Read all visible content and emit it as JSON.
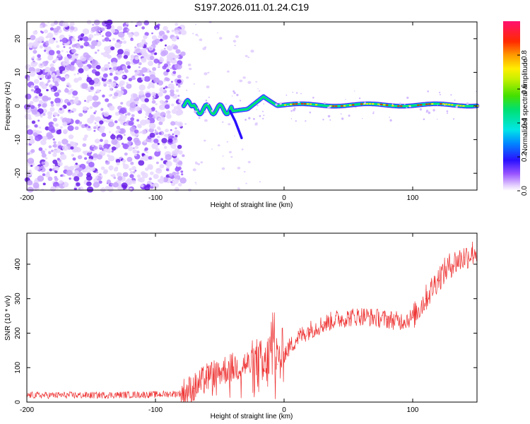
{
  "title": "S197.2026.011.01.24.C19",
  "colors": {
    "snr_line": "#ee3333",
    "scatter": "#7a3cf0"
  },
  "chart_data": [
    {
      "type": "heatmap",
      "name": "spectrogram",
      "xlabel": "Height of straight line (km)",
      "ylabel": "Frequency (Hz)",
      "xlim": [
        -200,
        150
      ],
      "ylim": [
        -25,
        25
      ],
      "xticks": [
        -200,
        -100,
        0,
        100
      ],
      "yticks": [
        -20,
        -10,
        0,
        10,
        20
      ],
      "colorbar": {
        "label": "Normalized spectral amplitude",
        "range": [
          0,
          1
        ],
        "ticks": [
          0.0,
          0.2,
          0.4,
          0.6,
          0.8
        ]
      },
      "features": {
        "noise_region_x": [
          -200,
          -78
        ],
        "tone_start_x": -78,
        "tone_frequency_hz": 0.3
      }
    },
    {
      "type": "line",
      "name": "snr",
      "xlabel": "Height of straight line (km)",
      "ylabel": "SNR (10 * v/v)",
      "xlim": [
        -200,
        150
      ],
      "ylim": [
        0,
        490
      ],
      "xticks": [
        -200,
        -100,
        0,
        100
      ],
      "yticks": [
        0,
        100,
        200,
        300,
        400
      ],
      "series": [
        {
          "name": "SNR",
          "x": [
            -200,
            -150,
            -100,
            -80,
            -70,
            -60,
            -50,
            -40,
            -30,
            -20,
            -15,
            -10,
            -5,
            0,
            10,
            20,
            30,
            40,
            50,
            60,
            70,
            80,
            90,
            100,
            110,
            120,
            130,
            140,
            150
          ],
          "y": [
            20,
            20,
            22,
            25,
            40,
            70,
            90,
            100,
            110,
            105,
            90,
            150,
            110,
            140,
            185,
            210,
            225,
            240,
            245,
            250,
            245,
            240,
            235,
            245,
            300,
            360,
            400,
            420,
            440
          ]
        }
      ]
    }
  ]
}
